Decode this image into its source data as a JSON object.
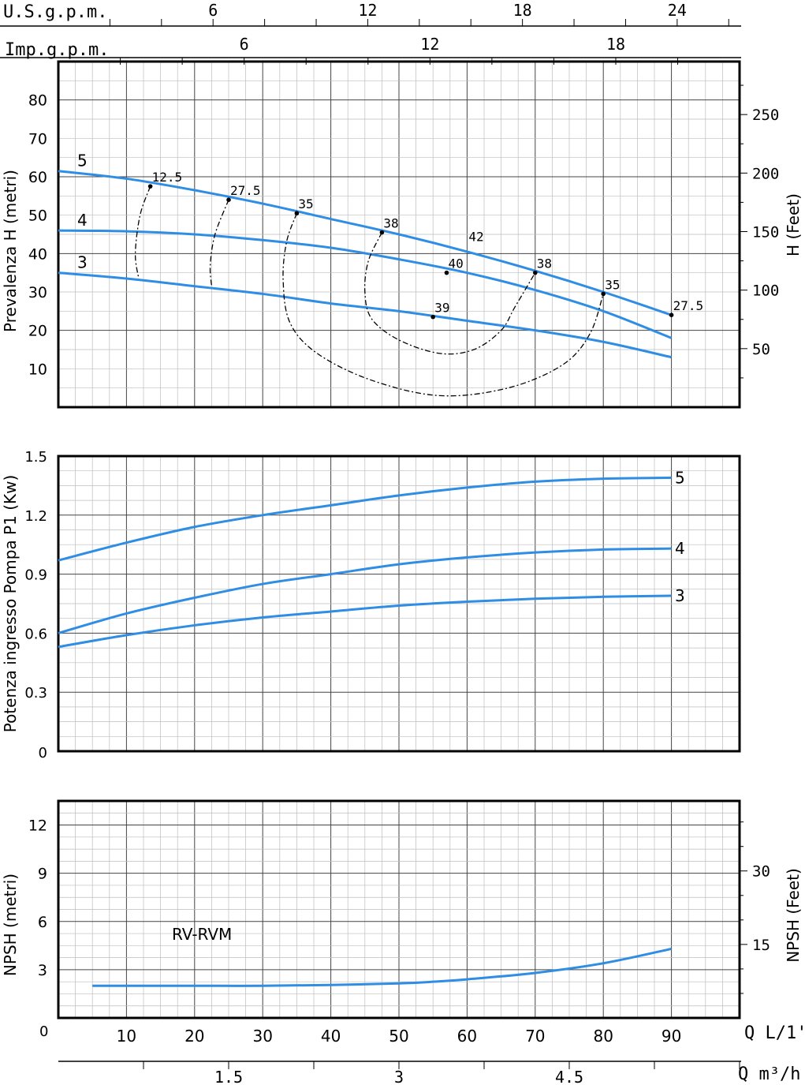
{
  "units": {
    "usgpm_label": "U.S.g.p.m.",
    "impgpm_label": "Imp.g.p.m.",
    "usgpm_ticks": [
      6,
      12,
      18,
      24
    ],
    "impgpm_ticks": [
      6,
      12,
      18
    ],
    "q_lmin_label": "Q  L/1'",
    "q_lmin_ticks": [
      10,
      20,
      30,
      40,
      50,
      60,
      70,
      80,
      90
    ],
    "q_m3h_label": "Q  m³/h",
    "q_m3h_ticks": [
      "1.5",
      "3",
      "4.5"
    ],
    "zero_label": "0"
  },
  "chart_data": [
    {
      "type": "line",
      "xlabel": "Q L/1'",
      "ylabel": "Prevalenza H (metri)",
      "y2label": "H (Feet)",
      "xlim": [
        0,
        100
      ],
      "ylim": [
        0,
        90
      ],
      "yticks": [
        10,
        20,
        30,
        40,
        50,
        60,
        70,
        80
      ],
      "y2ticks": [
        50,
        100,
        150,
        200,
        250
      ],
      "grid": true,
      "series": [
        {
          "name": "5",
          "x": [
            0,
            10,
            20,
            30,
            40,
            50,
            60,
            70,
            80,
            90
          ],
          "values": [
            61.5,
            59.5,
            56.5,
            53,
            49,
            45,
            40.5,
            35.5,
            30,
            24
          ],
          "color": "#2f8de4"
        },
        {
          "name": "4",
          "x": [
            0,
            10,
            20,
            30,
            40,
            50,
            60,
            70,
            80,
            90
          ],
          "values": [
            46,
            45.8,
            45,
            43.5,
            41.5,
            38.5,
            35,
            30.5,
            25,
            18
          ],
          "color": "#2f8de4"
        },
        {
          "name": "3",
          "x": [
            0,
            10,
            20,
            30,
            40,
            50,
            60,
            70,
            80,
            90
          ],
          "values": [
            35,
            33.5,
            31.5,
            29.5,
            27,
            25,
            22.5,
            20,
            17,
            13
          ],
          "color": "#2f8de4"
        }
      ],
      "efficiency_points": [
        {
          "label": "12.5",
          "x": 13.5,
          "y": 57.5
        },
        {
          "label": "27.5",
          "x": 25,
          "y": 54
        },
        {
          "label": "35",
          "x": 35,
          "y": 50.5
        },
        {
          "label": "38",
          "x": 47.5,
          "y": 45.5
        },
        {
          "label": "42",
          "x": 60,
          "y": 42
        },
        {
          "label": "38",
          "x": 70,
          "y": 35
        },
        {
          "label": "35",
          "x": 80,
          "y": 29.5
        },
        {
          "label": "27.5",
          "x": 90,
          "y": 24
        },
        {
          "label": "40",
          "x": 57,
          "y": 35
        },
        {
          "label": "39",
          "x": 55,
          "y": 23.5
        }
      ]
    },
    {
      "type": "line",
      "xlabel": "Q L/1'",
      "ylabel": "Potenza ingresso Pompa P1 (Kw)",
      "xlim": [
        0,
        100
      ],
      "ylim": [
        0,
        1.5
      ],
      "yticks": [
        "0",
        "0.3",
        "0.6",
        "0.9",
        "1.2",
        "1.5"
      ],
      "grid": true,
      "series": [
        {
          "name": "5",
          "x": [
            0,
            10,
            20,
            30,
            40,
            50,
            60,
            70,
            80,
            90
          ],
          "values": [
            0.97,
            1.06,
            1.14,
            1.2,
            1.25,
            1.3,
            1.34,
            1.37,
            1.385,
            1.39
          ],
          "color": "#2f8de4"
        },
        {
          "name": "4",
          "x": [
            0,
            10,
            20,
            30,
            40,
            50,
            60,
            70,
            80,
            90
          ],
          "values": [
            0.6,
            0.7,
            0.78,
            0.85,
            0.9,
            0.95,
            0.985,
            1.01,
            1.025,
            1.03
          ],
          "color": "#2f8de4"
        },
        {
          "name": "3",
          "x": [
            0,
            10,
            20,
            30,
            40,
            50,
            60,
            70,
            80,
            90
          ],
          "values": [
            0.53,
            0.59,
            0.64,
            0.68,
            0.71,
            0.74,
            0.76,
            0.775,
            0.785,
            0.79
          ],
          "color": "#2f8de4"
        }
      ]
    },
    {
      "type": "line",
      "title": "RV-RVM",
      "xlabel": "Q L/1'",
      "ylabel": "NPSH (metri)",
      "y2label": "NPSH (Feet)",
      "xlim": [
        0,
        100
      ],
      "ylim": [
        0,
        13.5
      ],
      "yticks": [
        "0",
        "3",
        "6",
        "9",
        "12"
      ],
      "y2ticks": [
        15,
        30
      ],
      "grid": true,
      "series": [
        {
          "name": "",
          "x": [
            5,
            10,
            20,
            30,
            40,
            50,
            55,
            60,
            70,
            80,
            90
          ],
          "values": [
            2,
            2,
            2,
            2,
            2.05,
            2.15,
            2.25,
            2.4,
            2.8,
            3.4,
            4.3
          ],
          "color": "#2f8de4"
        }
      ]
    }
  ]
}
